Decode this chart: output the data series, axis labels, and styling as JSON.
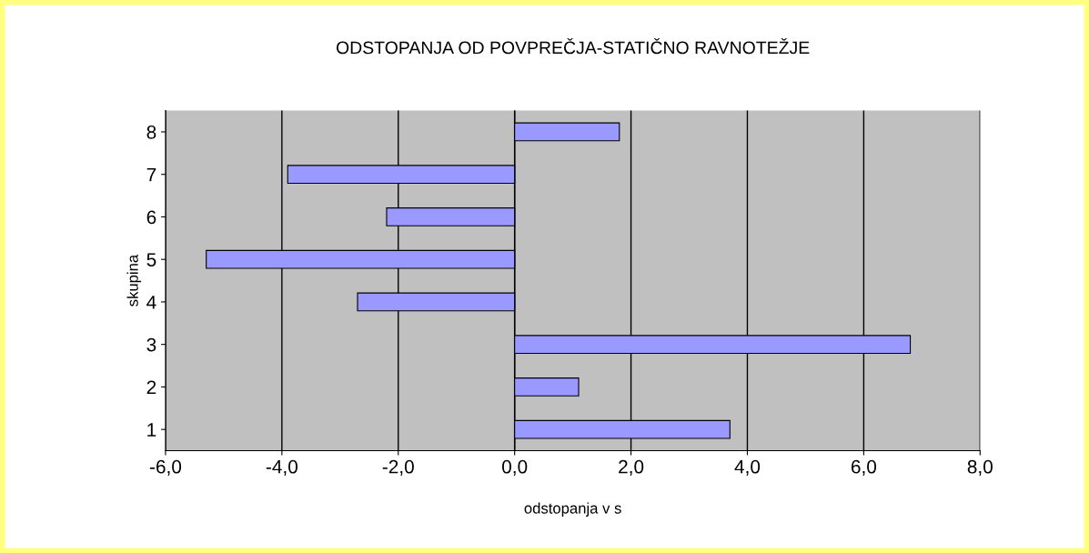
{
  "chart_data": {
    "type": "bar",
    "orientation": "horizontal",
    "title": "ODSTOPANJA OD POVPREČJA-STATIČNO RAVNOTEŽJE",
    "xlabel": "odstopanja v s",
    "ylabel": "skupina",
    "categories": [
      "8",
      "7",
      "6",
      "5",
      "4",
      "3",
      "2",
      "1"
    ],
    "values": [
      1.8,
      -3.9,
      -2.2,
      -5.3,
      -2.7,
      6.8,
      1.1,
      3.7
    ],
    "color": "#9999ff",
    "xlim": [
      -6,
      8
    ],
    "xticks": [
      {
        "value": -6,
        "label": "-6,0"
      },
      {
        "value": -4,
        "label": "-4,0"
      },
      {
        "value": -2,
        "label": "-2,0"
      },
      {
        "value": 0,
        "label": "0,0"
      },
      {
        "value": 2,
        "label": "2,0"
      },
      {
        "value": 4,
        "label": "4,0"
      },
      {
        "value": 6,
        "label": "6,0"
      },
      {
        "value": 8,
        "label": "8,0"
      }
    ],
    "grid": "x"
  }
}
